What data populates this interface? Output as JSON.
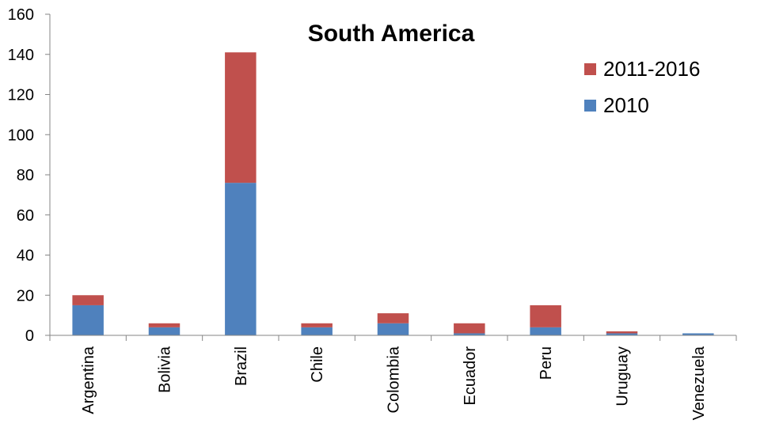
{
  "chart_data": {
    "type": "bar",
    "stacked": true,
    "title": "South America",
    "xlabel": "",
    "ylabel": "",
    "ylim": [
      0,
      160
    ],
    "yticks": [
      "0",
      "20",
      "40",
      "60",
      "80",
      "100",
      "120",
      "140",
      "160"
    ],
    "grid": false,
    "legend_position": "top-right",
    "categories": [
      "Argentina",
      "Bolivia",
      "Brazil",
      "Chile",
      "Colombia",
      "Ecuador",
      "Peru",
      "Uruguay",
      "Venezuela"
    ],
    "series": [
      {
        "name": "2010",
        "color": "#4F81BD",
        "values": [
          15,
          4,
          76,
          4,
          6,
          1,
          4,
          1,
          1
        ]
      },
      {
        "name": "2011-2016",
        "color": "#C0504D",
        "values": [
          5,
          2,
          65,
          2,
          5,
          5,
          11,
          1,
          0
        ]
      }
    ],
    "legend_order": [
      "2011-2016",
      "2010"
    ]
  }
}
